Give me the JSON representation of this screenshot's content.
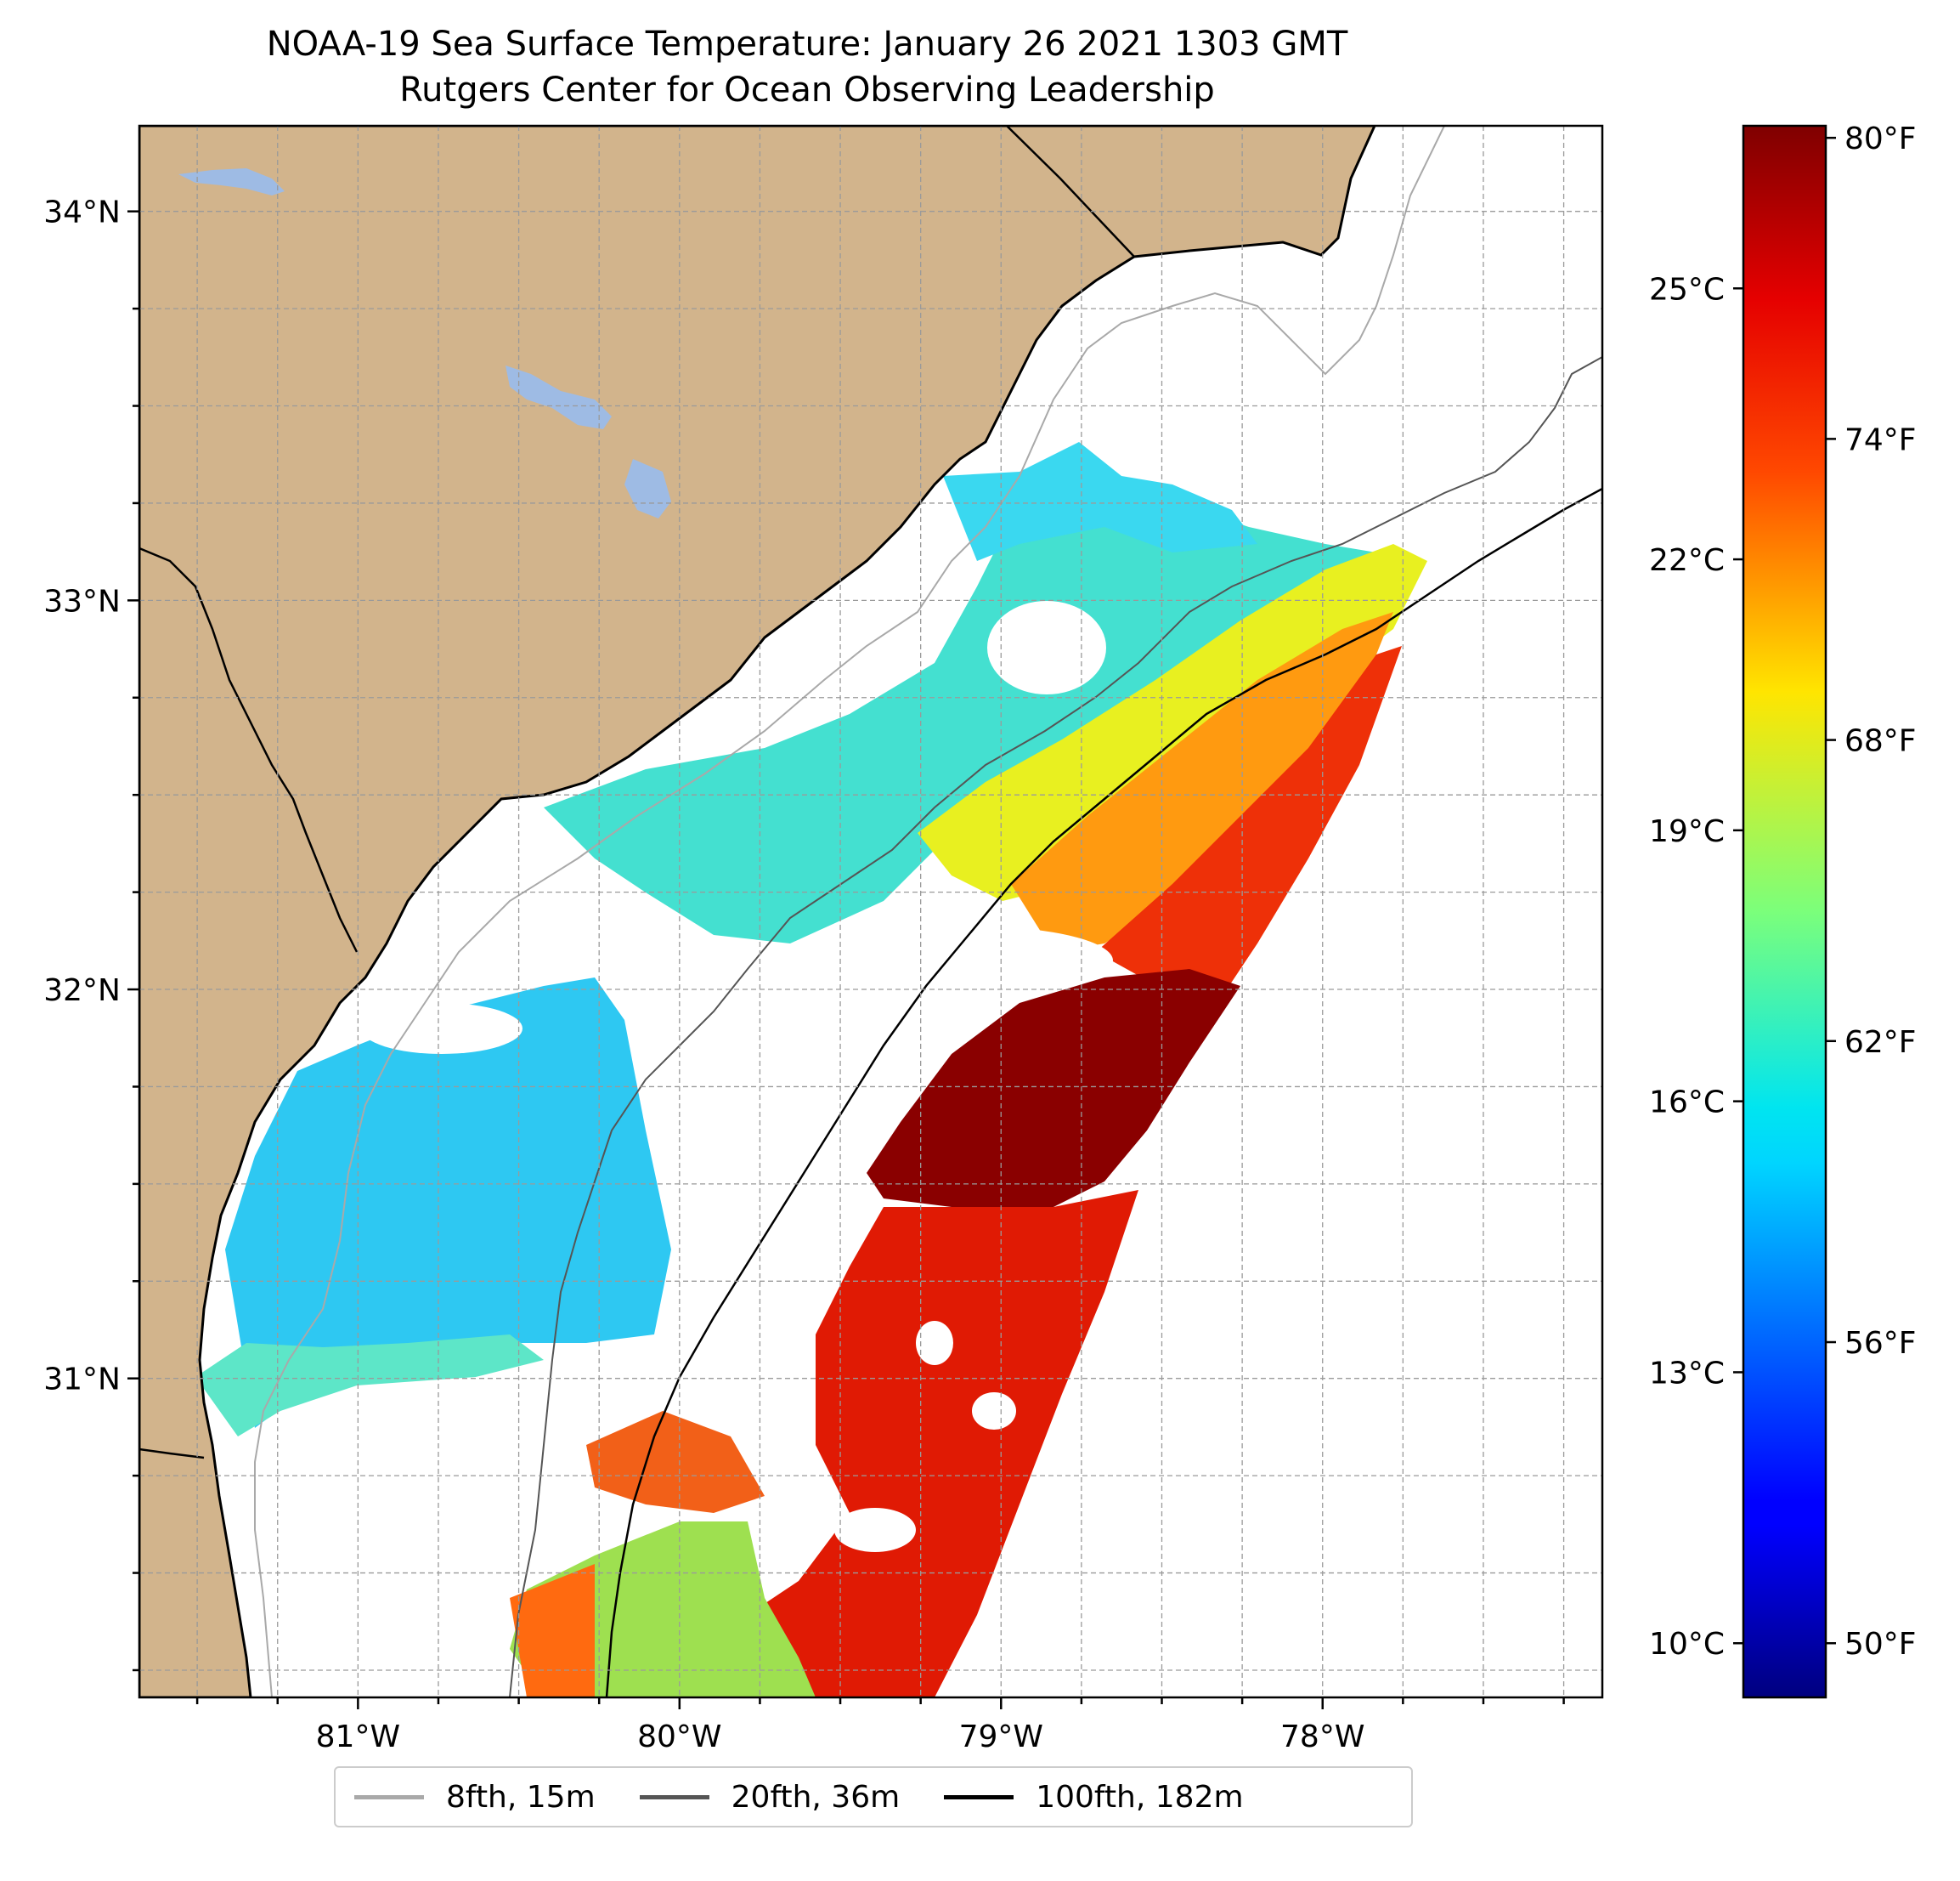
{
  "title": {
    "line1": "NOAA-19 Sea Surface Temperature: January 26 2021 1303 GMT",
    "line2": "Rutgers Center for Ocean Observing Leadership"
  },
  "map": {
    "lon_range": [
      -81.68,
      -77.13
    ],
    "lat_range": [
      30.18,
      34.22
    ],
    "lon_ticks": [
      {
        "value": -81,
        "label": "81°W"
      },
      {
        "value": -80,
        "label": "80°W"
      },
      {
        "value": -79,
        "label": "79°W"
      },
      {
        "value": -78,
        "label": "78°W"
      }
    ],
    "lat_ticks": [
      {
        "value": 34,
        "label": "34°N"
      },
      {
        "value": 33,
        "label": "33°N"
      },
      {
        "value": 32,
        "label": "32°N"
      },
      {
        "value": 31,
        "label": "31°N"
      }
    ],
    "gridlines": "dashed",
    "land_color": "#d2b48c",
    "water_body_color": "#9ebbe4",
    "no_data_color": "#ffffff"
  },
  "colorbar": {
    "range_c": [
      9.4,
      26.8
    ],
    "colormap": "jet",
    "celsius_ticks": [
      {
        "value": 10,
        "label": "10°C"
      },
      {
        "value": 13,
        "label": "13°C"
      },
      {
        "value": 16,
        "label": "16°C"
      },
      {
        "value": 19,
        "label": "19°C"
      },
      {
        "value": 22,
        "label": "22°C"
      },
      {
        "value": 25,
        "label": "25°C"
      }
    ],
    "fahrenheit_ticks": [
      {
        "value": 50,
        "label": "50°F"
      },
      {
        "value": 56,
        "label": "56°F"
      },
      {
        "value": 62,
        "label": "62°F"
      },
      {
        "value": 68,
        "label": "68°F"
      },
      {
        "value": 74,
        "label": "74°F"
      },
      {
        "value": 80,
        "label": "80°F"
      }
    ]
  },
  "legend": {
    "placement": "bottom-center",
    "entries": [
      {
        "label": "8fth, 15m",
        "color": "#a9a9a9"
      },
      {
        "label": "20fth, 36m",
        "color": "#555555"
      },
      {
        "label": "100fth, 182m",
        "color": "#000000"
      }
    ]
  }
}
